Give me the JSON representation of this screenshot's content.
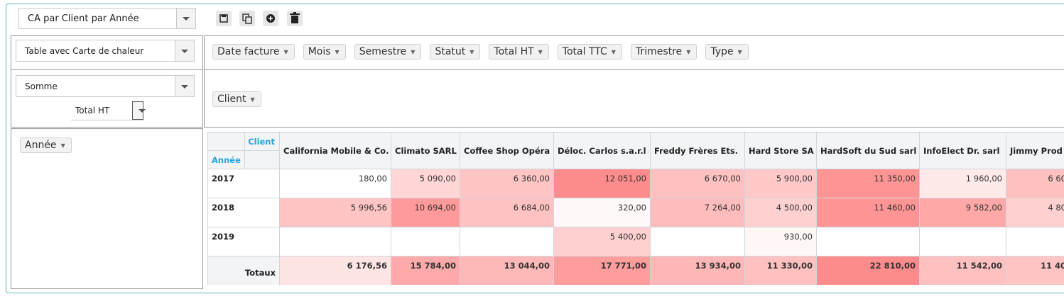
{
  "toolbar": {
    "report": "CA par Client par Année"
  },
  "renderer": "Table avec Carte de chaleur",
  "aggregator": "Somme",
  "aggregator_attribute": "Total HT",
  "unused_attributes": [
    "Date facture",
    "Mois",
    "Semestre",
    "Statut",
    "Total HT",
    "Total TTC",
    "Trimestre",
    "Type"
  ],
  "column_attribute": "Client",
  "row_attribute": "Année",
  "table": {
    "col_header_label": "Client",
    "row_header_label": "Année",
    "columns": [
      "California Mobile & Co.",
      "Climato SARL",
      "Coffee Shop Opéra",
      "Déloc. Carlos s.a.r.l",
      "Freddy Frères Ets.",
      "Hard Store SA",
      "HardSoft du Sud sarl",
      "InfoElect Dr. sarl",
      "Jimmy Prod"
    ],
    "rows": [
      {
        "label": "2017",
        "cells": [
          "180,00",
          "5 090,00",
          "6 360,00",
          "12 051,00",
          "6 670,00",
          "5 900,00",
          "11 350,00",
          "1 960,00",
          "6 60"
        ],
        "colors": [
          "#ffffff",
          "#ffd6d6",
          "#ffc4c4",
          "#ff8c8c",
          "#ffc0c0",
          "#ffc8c8",
          "#ff9494",
          "#ffeaea",
          "#ffc0c0"
        ]
      },
      {
        "label": "2018",
        "cells": [
          "5 996,56",
          "10 694,00",
          "6 684,00",
          "320,00",
          "7 264,00",
          "4 500,00",
          "11 460,00",
          "9 582,00",
          "4 80"
        ],
        "colors": [
          "#ffc4c4",
          "#ff9a9a",
          "#ffc2c2",
          "#fff8f8",
          "#ffbcbc",
          "#ffd0d0",
          "#ff9494",
          "#ffa8a8",
          "#ffd0d0"
        ]
      },
      {
        "label": "2019",
        "cells": [
          null,
          null,
          null,
          "5 400,00",
          null,
          "930,00",
          null,
          null,
          null
        ],
        "colors": [
          "#ffffff",
          "#ffffff",
          "#ffffff",
          "#ffd0d0",
          "#ffffff",
          "#fff6f6",
          "#ffffff",
          "#ffffff",
          "#ffffff"
        ]
      }
    ],
    "totals": {
      "label": "Totaux",
      "cells": [
        "6 176,56",
        "15 784,00",
        "13 044,00",
        "17 771,00",
        "13 934,00",
        "11 330,00",
        "22 810,00",
        "11 542,00",
        "11 40"
      ],
      "colors": [
        "#ffe4e4",
        "#ffaaaa",
        "#ffb8b8",
        "#ff9c9c",
        "#ffb6b6",
        "#ffc0c0",
        "#ff8c8c",
        "#ffc0c0",
        "#ffc4c4"
      ]
    }
  }
}
